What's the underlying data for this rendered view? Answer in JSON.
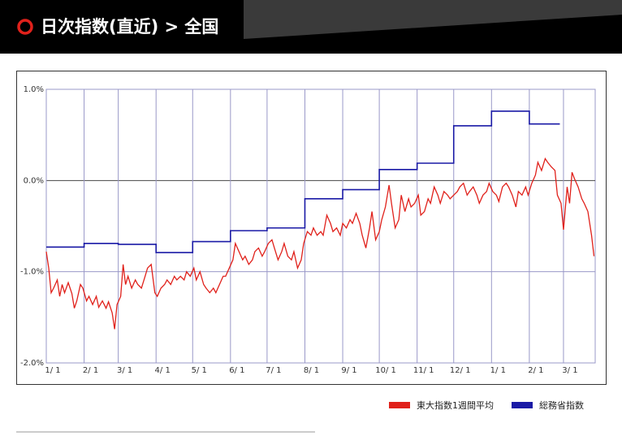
{
  "header": {
    "title": "日次指数(直近) > 全国"
  },
  "chart_data": {
    "type": "line",
    "xlim": [
      0,
      450
    ],
    "ylim": [
      -2,
      1
    ],
    "xticks": [
      {
        "value": 0,
        "label": "1/ 1"
      },
      {
        "value": 31,
        "label": "2/ 1"
      },
      {
        "value": 59,
        "label": "3/ 1"
      },
      {
        "value": 90,
        "label": "4/ 1"
      },
      {
        "value": 120,
        "label": "5/ 1"
      },
      {
        "value": 151,
        "label": "6/ 1"
      },
      {
        "value": 181,
        "label": "7/ 1"
      },
      {
        "value": 212,
        "label": "8/ 1"
      },
      {
        "value": 243,
        "label": "9/ 1"
      },
      {
        "value": 273,
        "label": "10/ 1"
      },
      {
        "value": 304,
        "label": "11/ 1"
      },
      {
        "value": 334,
        "label": "12/ 1"
      },
      {
        "value": 365,
        "label": "1/ 1"
      },
      {
        "value": 396,
        "label": "2/ 1"
      },
      {
        "value": 424,
        "label": "3/ 1"
      }
    ],
    "yticks": [
      {
        "value": 1,
        "label": "1.0%"
      },
      {
        "value": 0,
        "label": "0.0%"
      },
      {
        "value": -1,
        "label": "-1.0%"
      },
      {
        "value": -2,
        "label": "-2.0%"
      }
    ],
    "grid": true,
    "series": [
      {
        "name": "東大指数1週間平均",
        "color": "#e0211b",
        "step": false,
        "x": [
          0,
          2,
          4,
          6,
          9,
          11,
          13,
          15,
          18,
          21,
          23,
          25,
          28,
          30,
          33,
          35,
          38,
          41,
          43,
          46,
          49,
          51,
          54,
          56,
          58,
          61,
          63,
          65,
          67,
          70,
          73,
          75,
          78,
          81,
          83,
          86,
          89,
          91,
          94,
          97,
          99,
          102,
          105,
          107,
          110,
          113,
          115,
          118,
          121,
          123,
          126,
          129,
          131,
          134,
          137,
          139,
          142,
          145,
          147,
          150,
          153,
          155,
          158,
          161,
          163,
          166,
          169,
          171,
          174,
          177,
          179,
          182,
          185,
          187,
          190,
          193,
          195,
          198,
          201,
          203,
          206,
          209,
          211,
          214,
          217,
          219,
          222,
          225,
          227,
          230,
          233,
          235,
          238,
          241,
          243,
          246,
          249,
          251,
          254,
          257,
          259,
          262,
          265,
          267,
          270,
          273,
          275,
          278,
          281,
          283,
          286,
          289,
          291,
          294,
          297,
          299,
          302,
          305,
          307,
          310,
          313,
          315,
          318,
          321,
          323,
          326,
          329,
          331,
          334,
          337,
          339,
          342,
          345,
          347,
          350,
          353,
          355,
          358,
          361,
          363,
          366,
          369,
          371,
          374,
          377,
          379,
          382,
          385,
          387,
          390,
          393,
          395,
          398,
          401,
          403,
          406,
          409,
          411,
          414,
          417,
          419,
          422,
          424,
          427,
          429,
          431,
          433,
          436,
          439,
          441,
          444,
          447,
          449
        ],
        "values": [
          -0.78,
          -0.96,
          -1.23,
          -1.18,
          -1.09,
          -1.27,
          -1.14,
          -1.23,
          -1.12,
          -1.24,
          -1.4,
          -1.32,
          -1.14,
          -1.18,
          -1.32,
          -1.27,
          -1.36,
          -1.27,
          -1.39,
          -1.32,
          -1.4,
          -1.33,
          -1.45,
          -1.63,
          -1.36,
          -1.27,
          -0.92,
          -1.14,
          -1.05,
          -1.18,
          -1.09,
          -1.14,
          -1.18,
          -1.05,
          -0.96,
          -0.92,
          -1.23,
          -1.27,
          -1.18,
          -1.14,
          -1.09,
          -1.14,
          -1.05,
          -1.09,
          -1.05,
          -1.09,
          -1.0,
          -1.05,
          -0.96,
          -1.09,
          -1.0,
          -1.14,
          -1.18,
          -1.23,
          -1.18,
          -1.23,
          -1.14,
          -1.05,
          -1.05,
          -0.96,
          -0.87,
          -0.69,
          -0.78,
          -0.87,
          -0.83,
          -0.92,
          -0.87,
          -0.78,
          -0.74,
          -0.83,
          -0.78,
          -0.69,
          -0.65,
          -0.74,
          -0.87,
          -0.78,
          -0.69,
          -0.83,
          -0.87,
          -0.78,
          -0.96,
          -0.87,
          -0.69,
          -0.56,
          -0.6,
          -0.52,
          -0.6,
          -0.56,
          -0.6,
          -0.38,
          -0.47,
          -0.56,
          -0.52,
          -0.6,
          -0.47,
          -0.52,
          -0.43,
          -0.47,
          -0.36,
          -0.47,
          -0.6,
          -0.74,
          -0.52,
          -0.34,
          -0.65,
          -0.56,
          -0.43,
          -0.29,
          -0.05,
          -0.25,
          -0.52,
          -0.43,
          -0.16,
          -0.34,
          -0.2,
          -0.29,
          -0.25,
          -0.16,
          -0.38,
          -0.34,
          -0.2,
          -0.25,
          -0.07,
          -0.16,
          -0.25,
          -0.12,
          -0.16,
          -0.2,
          -0.16,
          -0.12,
          -0.07,
          -0.03,
          -0.16,
          -0.12,
          -0.07,
          -0.16,
          -0.25,
          -0.16,
          -0.12,
          -0.03,
          -0.12,
          -0.16,
          -0.23,
          -0.07,
          -0.03,
          -0.07,
          -0.16,
          -0.29,
          -0.12,
          -0.16,
          -0.07,
          -0.16,
          -0.03,
          0.06,
          0.2,
          0.11,
          0.24,
          0.2,
          0.15,
          0.11,
          -0.16,
          -0.25,
          -0.54,
          -0.07,
          -0.25,
          0.09,
          0.02,
          -0.07,
          -0.2,
          -0.25,
          -0.34,
          -0.6,
          -0.83
        ]
      },
      {
        "name": "総務省指数",
        "color": "#1a1aa6",
        "step": true,
        "x": [
          0,
          31,
          59,
          90,
          120,
          151,
          181,
          212,
          243,
          273,
          304,
          334,
          365,
          396,
          421
        ],
        "values": [
          -0.73,
          -0.69,
          -0.7,
          -0.79,
          -0.67,
          -0.55,
          -0.52,
          -0.2,
          -0.1,
          0.12,
          0.19,
          0.6,
          0.76,
          0.62,
          0.62
        ]
      }
    ]
  }
}
